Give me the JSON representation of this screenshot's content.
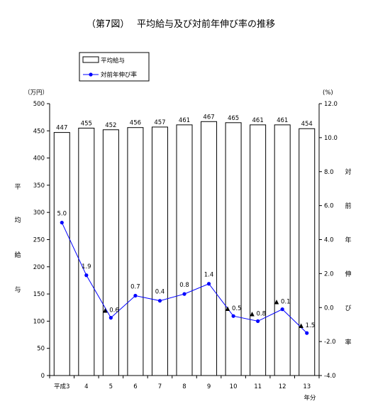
{
  "chart_data": {
    "type": "bar",
    "title": "（第7図）　 平均給与及び対前年伸び率の推移",
    "categories": [
      "平成3",
      "4",
      "5",
      "6",
      "7",
      "8",
      "9",
      "10",
      "11",
      "12",
      "13"
    ],
    "x_unit": "年分",
    "series": [
      {
        "name": "平均給与",
        "type": "bar",
        "axis": "left",
        "values": [
          447,
          455,
          452,
          456,
          457,
          461,
          467,
          465,
          461,
          461,
          454
        ],
        "labels": [
          "447",
          "455",
          "452",
          "456",
          "457",
          "461",
          "467",
          "465",
          "461",
          "461",
          "454"
        ]
      },
      {
        "name": "対前年伸び率",
        "type": "line",
        "axis": "right",
        "color": "#0000ff",
        "values": [
          5.0,
          1.9,
          -0.6,
          0.7,
          0.4,
          0.8,
          1.4,
          -0.5,
          -0.8,
          -0.1,
          -1.5
        ],
        "labels": [
          "5.0",
          "1.9",
          "▲ 0.6",
          "0.7",
          "0.4",
          "0.8",
          "1.4",
          "▲ 0.5",
          "▲ 0.8",
          "▲ 0.1",
          "▲ 1.5"
        ]
      }
    ],
    "y_left": {
      "unit": "（万円）",
      "label": [
        "平",
        "均",
        "給",
        "与"
      ],
      "min": 0,
      "max": 500,
      "step": 50,
      "ticks": [
        "0",
        "50",
        "100",
        "150",
        "200",
        "250",
        "300",
        "350",
        "400",
        "450",
        "500"
      ]
    },
    "y_right": {
      "unit": "(%)",
      "label": [
        "対",
        "前",
        "年",
        "伸",
        "び",
        "率"
      ],
      "min": -4.0,
      "max": 12.0,
      "step": 2.0,
      "ticks": [
        "-4.0",
        "-2.0",
        "0.0",
        "2.0",
        "4.0",
        "6.0",
        "8.0",
        "10.0",
        "12.0"
      ]
    },
    "legend": {
      "placement": "top-left",
      "items": [
        "平均給与",
        "対前年伸び率"
      ]
    },
    "grid": false
  }
}
